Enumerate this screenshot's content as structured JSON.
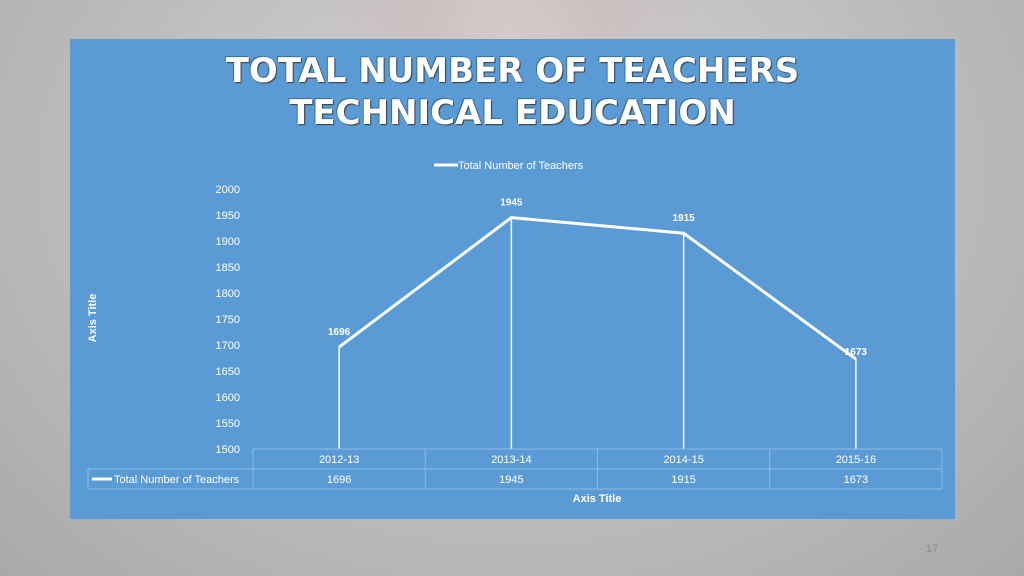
{
  "slide": {
    "page_number": "17"
  },
  "chart_data": {
    "type": "line",
    "title": "TOTAL NUMBER OF TEACHERS",
    "subtitle": "TECHNICAL EDUCATION",
    "categories": [
      "2012-13",
      "2013-14",
      "2014-15",
      "2015-16"
    ],
    "series": [
      {
        "name": "Total Number of Teachers",
        "values": [
          1696,
          1945,
          1915,
          1673
        ]
      }
    ],
    "data_labels": [
      "1696",
      "1945",
      "1915",
      "1673"
    ],
    "xlabel": "Axis Title",
    "ylabel": "Axis Title",
    "ylim": [
      1500,
      2000
    ],
    "yticks": [
      2000,
      1950,
      1900,
      1850,
      1800,
      1750,
      1700,
      1650,
      1600,
      1550,
      1500
    ],
    "legend": "top-center",
    "data_table": true,
    "drop_lines": true,
    "colors": {
      "background": "#5b9bd5",
      "line": "#ffffff",
      "text": "#ffffff"
    }
  }
}
